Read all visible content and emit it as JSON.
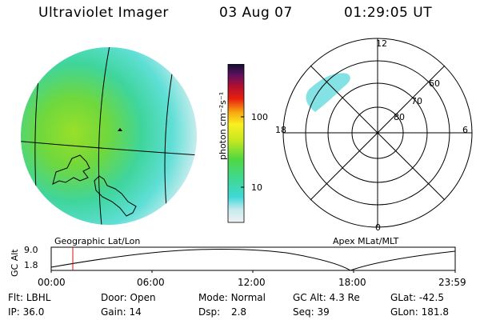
{
  "header": {
    "instrument": "Ultraviolet Imager",
    "date": "03 Aug 07",
    "time": "01:29:05 UT"
  },
  "colorbar": {
    "unit_label": "photon cm⁻²s⁻¹",
    "ticks": [
      "100",
      "10"
    ]
  },
  "polar_plot": {
    "mlt_labels": [
      "12",
      "18",
      "6",
      "0"
    ],
    "mlat_labels": [
      "60",
      "70",
      "80"
    ]
  },
  "labels": {
    "left_panel": "Geographic Lat/Lon",
    "right_panel": "Apex MLat/MLT"
  },
  "timeline": {
    "ylabel": "GC Alt",
    "y_ticks": [
      "9.0",
      "1.8"
    ],
    "x_ticks": [
      "00:00",
      "06:00",
      "12:00",
      "18:00",
      "23:59"
    ],
    "marker_time": "01:29"
  },
  "info": {
    "row1": [
      {
        "label": "Flt:",
        "value": "LBHL"
      },
      {
        "label": "Door:",
        "value": "Open"
      },
      {
        "label": "Mode:",
        "value": "Normal"
      },
      {
        "label": "GC Alt:",
        "value": "4.3 Re"
      },
      {
        "label": "GLat:",
        "value": "-42.5"
      }
    ],
    "row2": [
      {
        "label": "IP:",
        "value": "36.0"
      },
      {
        "label": "Gain:",
        "value": "14"
      },
      {
        "label": "Dsp:",
        "value": "2.8"
      },
      {
        "label": "Seq:",
        "value": "39"
      },
      {
        "label": "GLon:",
        "value": "181.8"
      }
    ]
  }
}
